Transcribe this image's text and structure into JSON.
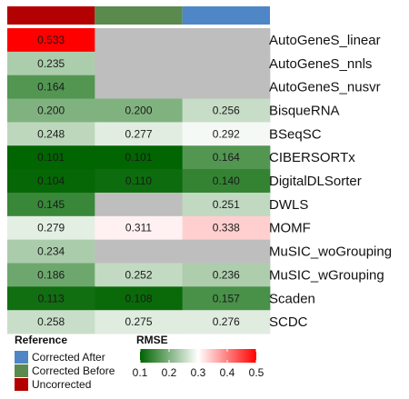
{
  "chart_data": {
    "type": "heatmap",
    "columns": [
      "Uncorrected",
      "Corrected Before",
      "Corrected After"
    ],
    "rows": [
      "AutoGeneS_linear",
      "AutoGeneS_nnls",
      "AutoGeneS_nusvr",
      "BisqueRNA",
      "BSeqSC",
      "CIBERSORTx",
      "DigitalDLSorter",
      "DWLS",
      "MOMF",
      "MuSIC_woGrouping",
      "MuSIC_wGrouping",
      "Scaden",
      "SCDC"
    ],
    "values": [
      [
        0.533,
        null,
        null
      ],
      [
        0.235,
        null,
        null
      ],
      [
        0.164,
        null,
        null
      ],
      [
        0.2,
        0.2,
        0.256
      ],
      [
        0.248,
        0.277,
        0.292
      ],
      [
        0.101,
        0.101,
        0.164
      ],
      [
        0.104,
        0.11,
        0.14
      ],
      [
        0.145,
        null,
        0.251
      ],
      [
        0.279,
        0.311,
        0.338
      ],
      [
        0.234,
        null,
        null
      ],
      [
        0.186,
        0.252,
        0.236
      ],
      [
        0.113,
        0.108,
        0.157
      ],
      [
        0.258,
        0.275,
        0.276
      ]
    ],
    "labels": [
      [
        "0.533",
        "",
        ""
      ],
      [
        "0.235",
        "",
        ""
      ],
      [
        "0.164",
        "",
        ""
      ],
      [
        "0.200",
        "0.200",
        "0.256"
      ],
      [
        "0.248",
        "0.277",
        "0.292"
      ],
      [
        "0.101",
        "0.101",
        "0.164"
      ],
      [
        "0.104",
        "0.110",
        "0.140"
      ],
      [
        "0.145",
        "",
        "0.251"
      ],
      [
        "0.279",
        "0.311",
        "0.338"
      ],
      [
        "0.234",
        "",
        ""
      ],
      [
        "0.186",
        "0.252",
        "0.236"
      ],
      [
        "0.113",
        "0.108",
        "0.157"
      ],
      [
        "0.258",
        "0.275",
        "0.276"
      ]
    ],
    "na_color": "#bebebe",
    "column_annotation": {
      "colors": {
        "Uncorrected": "#b30000",
        "Corrected Before": "#5a8a4e",
        "Corrected After": "#4f86c6"
      }
    },
    "color_scale": {
      "name": "RMSE",
      "range": [
        0.1,
        0.5
      ],
      "ticks": [
        "0.1",
        "0.2",
        "0.3",
        "0.4",
        "0.5"
      ],
      "low_color": "#006400",
      "mid_value": 0.3,
      "mid_color": "#ffffff",
      "high_color": "#ff0000"
    },
    "legend": {
      "title": "Reference",
      "entries": [
        "Corrected After",
        "Corrected Before",
        "Uncorrected"
      ],
      "placement": "bottom-left"
    }
  }
}
